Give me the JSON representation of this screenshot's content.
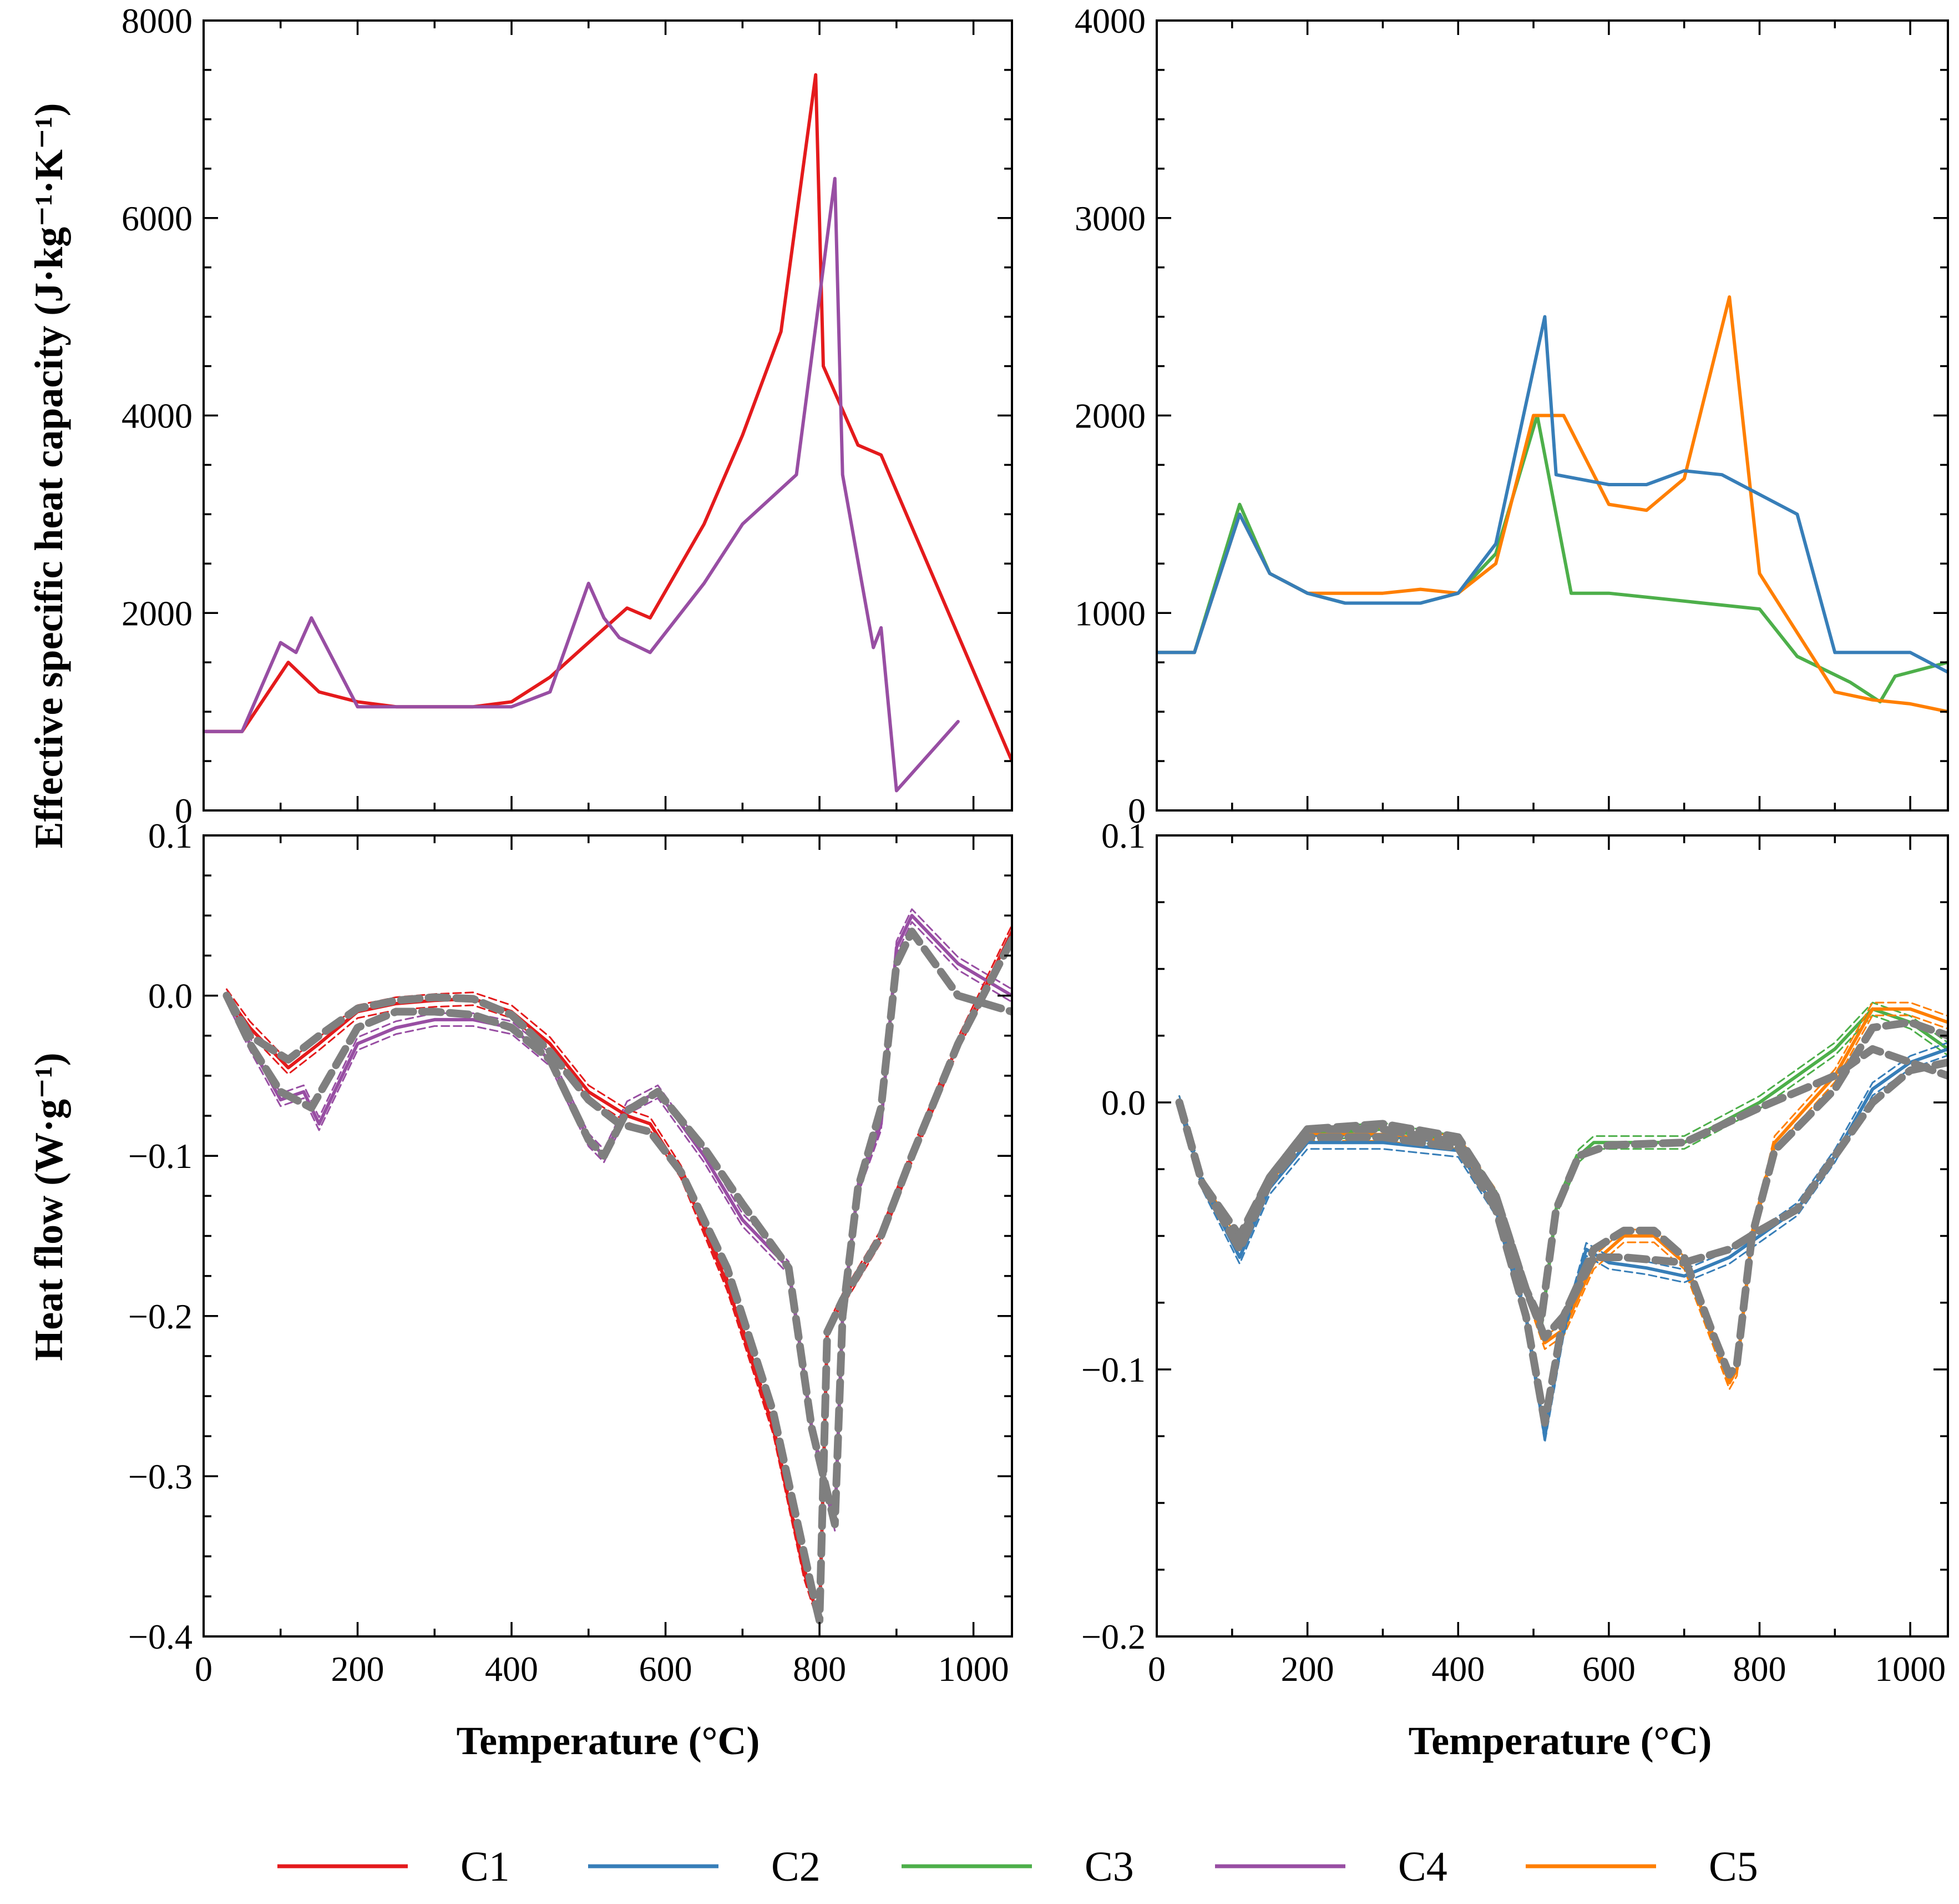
{
  "colors": {
    "C1": "#e41a1c",
    "C2": "#377eb8",
    "C3": "#4daf4a",
    "C4": "#984ea3",
    "C5": "#ff7f00",
    "model": "#7f7f7f"
  },
  "labels": {
    "ylabel_top": "Effective specific heat capacity (J·kg⁻¹·K⁻¹)",
    "ylabel_bottom": "Heat flow (W·g⁻¹)",
    "xlabel": "Temperature (°C)"
  },
  "legend": [
    {
      "key": "C1",
      "label": "C1"
    },
    {
      "key": "C2",
      "label": "C2"
    },
    {
      "key": "C3",
      "label": "C3"
    },
    {
      "key": "C4",
      "label": "C4"
    },
    {
      "key": "C5",
      "label": "C5"
    }
  ],
  "chart_data": [
    {
      "id": "top-left",
      "type": "line",
      "xlim": [
        0,
        1050
      ],
      "ylim": [
        0,
        8000
      ],
      "xticks": [
        0,
        200,
        400,
        600,
        800,
        1000
      ],
      "yticks": [
        0,
        2000,
        4000,
        6000,
        8000
      ],
      "ytick_labels": [
        "0",
        "2000",
        "4000",
        "6000",
        "8000"
      ],
      "xtick_labels": [],
      "ylabel": "Effective specific heat capacity (J·kg⁻¹·K⁻¹)",
      "series": [
        {
          "name": "C1",
          "x": [
            0,
            50,
            110,
            150,
            200,
            250,
            300,
            350,
            400,
            450,
            500,
            550,
            580,
            650,
            700,
            750,
            795,
            805,
            850,
            880,
            1050
          ],
          "y": [
            800,
            800,
            1500,
            1200,
            1100,
            1050,
            1050,
            1050,
            1100,
            1350,
            1700,
            2050,
            1950,
            2900,
            3800,
            4850,
            7450,
            4500,
            3700,
            3600,
            500
          ]
        },
        {
          "name": "C4",
          "x": [
            0,
            50,
            100,
            120,
            140,
            200,
            250,
            300,
            350,
            400,
            450,
            500,
            520,
            540,
            580,
            650,
            700,
            770,
            800,
            820,
            830,
            870,
            880,
            900,
            980
          ],
          "y": [
            800,
            800,
            1700,
            1600,
            1950,
            1050,
            1050,
            1050,
            1050,
            1050,
            1200,
            2300,
            1950,
            1750,
            1600,
            2300,
            2900,
            3400,
            5200,
            6400,
            3400,
            1650,
            1850,
            200,
            900
          ]
        }
      ]
    },
    {
      "id": "top-right",
      "type": "line",
      "xlim": [
        0,
        1050
      ],
      "ylim": [
        0,
        4000
      ],
      "xticks": [
        0,
        200,
        400,
        600,
        800,
        1000
      ],
      "yticks": [
        0,
        1000,
        2000,
        3000,
        4000
      ],
      "ytick_labels": [
        "0",
        "1000",
        "2000",
        "3000",
        "4000"
      ],
      "xtick_labels": [],
      "series": [
        {
          "name": "C3",
          "x": [
            0,
            50,
            110,
            150,
            200,
            250,
            300,
            350,
            400,
            450,
            505,
            550,
            600,
            800,
            850,
            920,
            960,
            980,
            1050
          ],
          "y": [
            800,
            800,
            1550,
            1200,
            1100,
            1050,
            1050,
            1050,
            1100,
            1300,
            2000,
            1100,
            1100,
            1020,
            780,
            650,
            550,
            680,
            750
          ]
        },
        {
          "name": "C5",
          "x": [
            0,
            50,
            110,
            150,
            200,
            250,
            300,
            350,
            400,
            450,
            500,
            540,
            600,
            650,
            700,
            760,
            800,
            850,
            900,
            950,
            1000,
            1050
          ],
          "y": [
            800,
            800,
            1500,
            1200,
            1100,
            1100,
            1100,
            1120,
            1100,
            1250,
            2000,
            2000,
            1550,
            1520,
            1680,
            2600,
            1200,
            900,
            600,
            560,
            540,
            500
          ]
        },
        {
          "name": "C2",
          "x": [
            0,
            50,
            110,
            150,
            200,
            250,
            300,
            350,
            400,
            450,
            515,
            530,
            600,
            650,
            700,
            750,
            850,
            900,
            950,
            1000,
            1050
          ],
          "y": [
            800,
            800,
            1500,
            1200,
            1100,
            1050,
            1050,
            1050,
            1100,
            1350,
            2500,
            1700,
            1650,
            1650,
            1720,
            1700,
            1500,
            800,
            800,
            800,
            700
          ]
        }
      ]
    },
    {
      "id": "bottom-left",
      "type": "line",
      "xlim": [
        0,
        1050
      ],
      "ylim": [
        -0.4,
        0.1
      ],
      "xticks": [
        0,
        200,
        400,
        600,
        800,
        1000
      ],
      "xtick_labels": [
        "0",
        "200",
        "400",
        "600",
        "800",
        "1000"
      ],
      "yticks": [
        -0.4,
        -0.3,
        -0.2,
        -0.1,
        0.0,
        0.1
      ],
      "ytick_labels": [
        "−0.4",
        "−0.3",
        "−0.2",
        "−0.1",
        "0.0",
        "0.1"
      ],
      "xlabel": "Temperature (°C)",
      "ylabel": "Heat flow (W·g⁻¹)",
      "series": [
        {
          "name": "C4",
          "style": "solid",
          "x": [
            30,
            60,
            100,
            130,
            150,
            200,
            250,
            300,
            350,
            400,
            450,
            500,
            520,
            550,
            590,
            650,
            700,
            760,
            790,
            820,
            830,
            850,
            880,
            900,
            920,
            980,
            1050
          ],
          "y": [
            0,
            -0.03,
            -0.065,
            -0.06,
            -0.08,
            -0.03,
            -0.02,
            -0.015,
            -0.015,
            -0.02,
            -0.04,
            -0.09,
            -0.1,
            -0.07,
            -0.06,
            -0.1,
            -0.14,
            -0.17,
            -0.27,
            -0.33,
            -0.2,
            -0.12,
            -0.08,
            0.03,
            0.05,
            0.02,
            0.0
          ]
        },
        {
          "name": "C1",
          "style": "solid",
          "x": [
            30,
            60,
            110,
            150,
            200,
            250,
            300,
            350,
            400,
            450,
            500,
            550,
            580,
            620,
            680,
            740,
            780,
            800,
            810,
            830,
            880,
            920,
            980,
            1050
          ],
          "y": [
            0,
            -0.02,
            -0.045,
            -0.03,
            -0.01,
            -0.005,
            -0.003,
            -0.002,
            -0.01,
            -0.03,
            -0.06,
            -0.075,
            -0.08,
            -0.11,
            -0.18,
            -0.27,
            -0.36,
            -0.39,
            -0.21,
            -0.19,
            -0.15,
            -0.1,
            -0.03,
            0.04
          ]
        },
        {
          "name": "model-C1",
          "style": "model",
          "x": [
            30,
            60,
            110,
            150,
            200,
            250,
            300,
            350,
            400,
            450,
            500,
            540,
            580,
            620,
            680,
            740,
            790,
            800,
            810,
            830,
            880,
            920,
            980,
            1050
          ],
          "y": [
            0,
            -0.025,
            -0.04,
            -0.025,
            -0.008,
            -0.003,
            -0.001,
            -0.002,
            -0.012,
            -0.035,
            -0.065,
            -0.08,
            -0.085,
            -0.11,
            -0.17,
            -0.26,
            -0.37,
            -0.39,
            -0.21,
            -0.19,
            -0.15,
            -0.1,
            -0.03,
            0.035
          ]
        },
        {
          "name": "model-C4",
          "style": "model",
          "x": [
            30,
            60,
            100,
            140,
            200,
            250,
            300,
            350,
            400,
            450,
            500,
            520,
            550,
            590,
            650,
            700,
            760,
            790,
            820,
            830,
            850,
            880,
            900,
            920,
            980,
            1050
          ],
          "y": [
            0,
            -0.03,
            -0.06,
            -0.07,
            -0.02,
            -0.01,
            -0.01,
            -0.012,
            -0.02,
            -0.04,
            -0.09,
            -0.1,
            -0.072,
            -0.06,
            -0.095,
            -0.13,
            -0.17,
            -0.27,
            -0.33,
            -0.2,
            -0.12,
            -0.07,
            0.02,
            0.04,
            0.0,
            -0.01
          ]
        }
      ]
    },
    {
      "id": "bottom-right",
      "type": "line",
      "xlim": [
        0,
        1050
      ],
      "ylim": [
        -0.2,
        0.1
      ],
      "xticks": [
        0,
        200,
        400,
        600,
        800,
        1000
      ],
      "xtick_labels": [
        "0",
        "200",
        "400",
        "600",
        "800",
        "1000"
      ],
      "yticks": [
        -0.2,
        -0.1,
        0.0,
        0.1
      ],
      "ytick_labels": [
        "−0.2",
        "−0.1",
        "0.0",
        "0.1"
      ],
      "xlabel": "Temperature (°C)",
      "series": [
        {
          "name": "C3",
          "style": "solid",
          "x": [
            30,
            60,
            110,
            150,
            200,
            300,
            400,
            450,
            490,
            510,
            530,
            560,
            580,
            600,
            700,
            800,
            900,
            950,
            1000,
            1050
          ],
          "y": [
            0,
            -0.03,
            -0.055,
            -0.03,
            -0.012,
            -0.01,
            -0.015,
            -0.035,
            -0.07,
            -0.085,
            -0.04,
            -0.02,
            -0.015,
            -0.015,
            -0.015,
            0.0,
            0.02,
            0.035,
            0.03,
            0.02
          ]
        },
        {
          "name": "C5",
          "style": "solid",
          "x": [
            30,
            60,
            110,
            150,
            200,
            300,
            400,
            450,
            490,
            515,
            540,
            580,
            620,
            660,
            700,
            740,
            760,
            770,
            790,
            820,
            900,
            950,
            1000,
            1050
          ],
          "y": [
            0,
            -0.03,
            -0.055,
            -0.03,
            -0.012,
            -0.012,
            -0.015,
            -0.035,
            -0.07,
            -0.09,
            -0.085,
            -0.06,
            -0.05,
            -0.05,
            -0.06,
            -0.09,
            -0.105,
            -0.1,
            -0.05,
            -0.015,
            0.01,
            0.035,
            0.035,
            0.03
          ]
        },
        {
          "name": "C2",
          "style": "solid",
          "x": [
            30,
            60,
            110,
            150,
            200,
            300,
            400,
            450,
            490,
            515,
            540,
            570,
            600,
            650,
            700,
            760,
            800,
            850,
            900,
            950,
            1000,
            1050
          ],
          "y": [
            0,
            -0.03,
            -0.058,
            -0.032,
            -0.015,
            -0.015,
            -0.018,
            -0.04,
            -0.08,
            -0.125,
            -0.085,
            -0.055,
            -0.06,
            -0.062,
            -0.065,
            -0.058,
            -0.05,
            -0.04,
            -0.02,
            0.005,
            0.015,
            0.02
          ]
        },
        {
          "name": "model-C3",
          "style": "model",
          "x": [
            30,
            60,
            110,
            150,
            200,
            300,
            400,
            450,
            490,
            510,
            530,
            560,
            600,
            700,
            800,
            900,
            950,
            1000,
            1050
          ],
          "y": [
            0,
            -0.03,
            -0.05,
            -0.028,
            -0.01,
            -0.008,
            -0.013,
            -0.035,
            -0.07,
            -0.082,
            -0.04,
            -0.02,
            -0.016,
            -0.015,
            -0.002,
            0.01,
            0.02,
            0.015,
            0.01
          ]
        },
        {
          "name": "model-C5",
          "style": "model",
          "x": [
            30,
            60,
            110,
            150,
            200,
            300,
            400,
            450,
            490,
            515,
            540,
            580,
            620,
            660,
            700,
            740,
            760,
            770,
            790,
            820,
            900,
            950,
            1000,
            1050
          ],
          "y": [
            0,
            -0.03,
            -0.052,
            -0.028,
            -0.01,
            -0.01,
            -0.015,
            -0.035,
            -0.07,
            -0.088,
            -0.08,
            -0.055,
            -0.048,
            -0.048,
            -0.058,
            -0.088,
            -0.102,
            -0.098,
            -0.05,
            -0.018,
            0.005,
            0.028,
            0.03,
            0.025
          ]
        },
        {
          "name": "model-C2",
          "style": "model",
          "x": [
            30,
            60,
            110,
            150,
            200,
            300,
            400,
            450,
            490,
            515,
            540,
            580,
            620,
            700,
            760,
            800,
            850,
            900,
            950,
            1000,
            1050
          ],
          "y": [
            0,
            -0.03,
            -0.055,
            -0.03,
            -0.013,
            -0.013,
            -0.017,
            -0.04,
            -0.08,
            -0.12,
            -0.08,
            -0.058,
            -0.058,
            -0.06,
            -0.055,
            -0.048,
            -0.04,
            -0.02,
            0.0,
            0.012,
            0.015
          ]
        }
      ]
    }
  ]
}
